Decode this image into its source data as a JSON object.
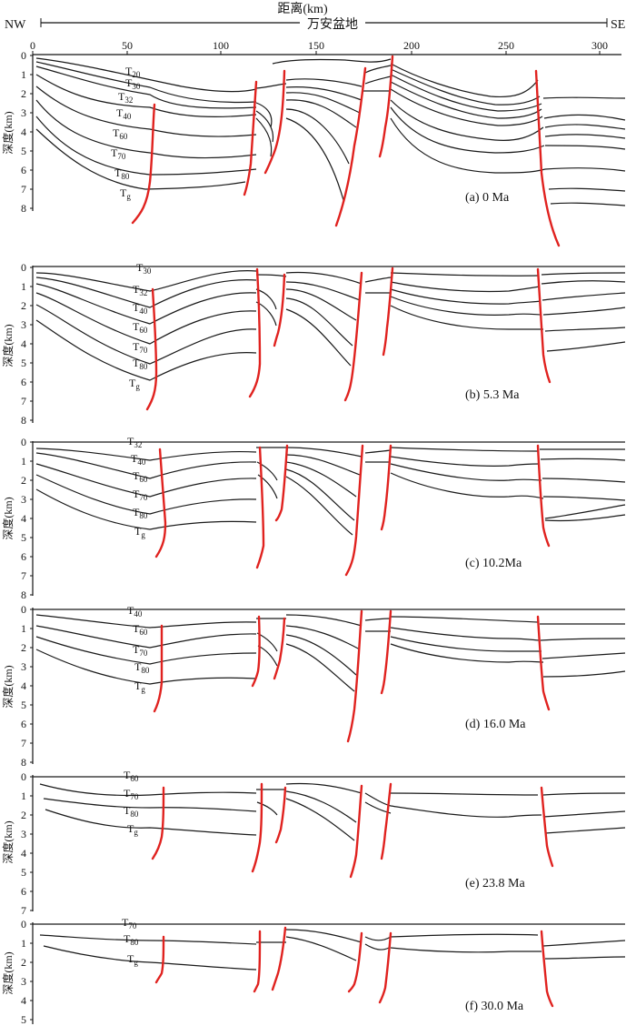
{
  "header": {
    "nw_label": "NW",
    "se_label": "SE",
    "distance_label": "距离(km)",
    "basin_label": "万安盆地"
  },
  "x_axis": {
    "ticks": [
      "0",
      "50",
      "100",
      "150",
      "200",
      "250",
      "300"
    ]
  },
  "y_axis_label": "深度(km)",
  "panels": [
    {
      "id": "a",
      "caption": "(a)   0 Ma",
      "y_ticks": [
        "0",
        "1",
        "2",
        "3",
        "4",
        "5",
        "6",
        "7",
        "8"
      ],
      "horizon_labels": [
        {
          "base": "T",
          "sub": "20"
        },
        {
          "base": "T",
          "sub": "30"
        },
        {
          "base": "T",
          "sub": "32"
        },
        {
          "base": "T",
          "sub": "40"
        },
        {
          "base": "T",
          "sub": "60"
        },
        {
          "base": "T",
          "sub": "70"
        },
        {
          "base": "T",
          "sub": "80"
        },
        {
          "base": "T",
          "sub": "g"
        }
      ]
    },
    {
      "id": "b",
      "caption": "(b)    5.3 Ma",
      "y_ticks": [
        "0",
        "1",
        "2",
        "3",
        "4",
        "5",
        "6",
        "7",
        "8"
      ],
      "horizon_labels": [
        {
          "base": "T",
          "sub": "30"
        },
        {
          "base": "T",
          "sub": "32"
        },
        {
          "base": "T",
          "sub": "40"
        },
        {
          "base": "T",
          "sub": "60"
        },
        {
          "base": "T",
          "sub": "70"
        },
        {
          "base": "T",
          "sub": "80"
        },
        {
          "base": "T",
          "sub": "g"
        }
      ]
    },
    {
      "id": "c",
      "caption": "(c)    10.2Ma",
      "y_ticks": [
        "0",
        "1",
        "2",
        "3",
        "4",
        "5",
        "6",
        "7",
        "8"
      ],
      "horizon_labels": [
        {
          "base": "T",
          "sub": "32"
        },
        {
          "base": "T",
          "sub": "40"
        },
        {
          "base": "T",
          "sub": "60"
        },
        {
          "base": "T",
          "sub": "70"
        },
        {
          "base": "T",
          "sub": "80"
        },
        {
          "base": "T",
          "sub": "g"
        }
      ]
    },
    {
      "id": "d",
      "caption": "(d)    16.0 Ma",
      "y_ticks": [
        "0",
        "1",
        "2",
        "3",
        "4",
        "5",
        "6",
        "7",
        "8"
      ],
      "horizon_labels": [
        {
          "base": "T",
          "sub": "40"
        },
        {
          "base": "T",
          "sub": "60"
        },
        {
          "base": "T",
          "sub": "70"
        },
        {
          "base": "T",
          "sub": "80"
        },
        {
          "base": "T",
          "sub": "g"
        }
      ]
    },
    {
      "id": "e",
      "caption": "(e)    23.8 Ma",
      "y_ticks": [
        "0",
        "1",
        "2",
        "3",
        "4",
        "5",
        "6",
        "7"
      ],
      "horizon_labels": [
        {
          "base": "T",
          "sub": "60"
        },
        {
          "base": "T",
          "sub": "70"
        },
        {
          "base": "T",
          "sub": "80"
        },
        {
          "base": "T",
          "sub": "g"
        }
      ]
    },
    {
      "id": "f",
      "caption": "(f)    30.0 Ma",
      "y_ticks": [
        "0",
        "1",
        "2",
        "3",
        "4",
        "5"
      ],
      "horizon_labels": [
        {
          "base": "T",
          "sub": "70"
        },
        {
          "base": "T",
          "sub": "80"
        },
        {
          "base": "T",
          "sub": "g"
        }
      ]
    }
  ],
  "colors": {
    "fault": "#e0221f",
    "horizon": "#1a1a1a"
  }
}
